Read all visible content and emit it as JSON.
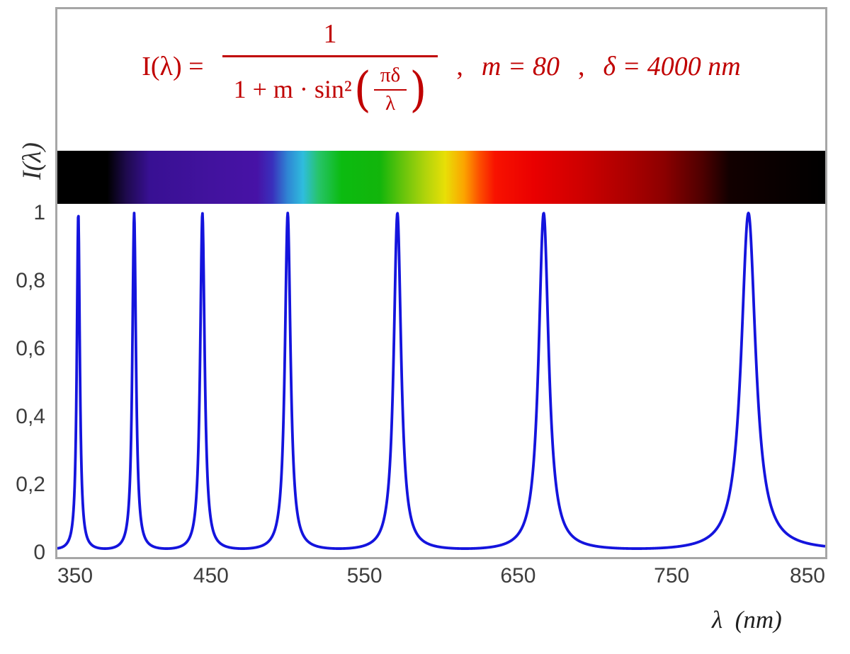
{
  "chart_data": {
    "type": "line",
    "x_title": "λ  (nm)",
    "y_title": "I(λ)",
    "xlim": [
      350,
      850
    ],
    "ylim": [
      0,
      1
    ],
    "grid": false,
    "legend": "none",
    "x_ticks": [
      {
        "label": "350",
        "value": 350
      },
      {
        "label": "450",
        "value": 450
      },
      {
        "label": "550",
        "value": 550
      },
      {
        "label": "650",
        "value": 650
      },
      {
        "label": "750",
        "value": 750
      },
      {
        "label": "850",
        "value": 850
      }
    ],
    "y_ticks": [
      {
        "label": "1",
        "value": 1
      },
      {
        "label": "0,8",
        "value": 0.8
      },
      {
        "label": "0,6",
        "value": 0.6
      },
      {
        "label": "0,4",
        "value": 0.4
      },
      {
        "label": "0,2",
        "value": 0.2
      },
      {
        "label": "0",
        "value": 0
      }
    ],
    "function": "I(λ) = 1 / (1 + m·sin²(πδ/λ))",
    "params": {
      "m": 80,
      "delta_nm": 4000
    },
    "peaks_nm": [
      363.64,
      400.0,
      444.44,
      500.0,
      571.43,
      666.67,
      800.0
    ],
    "peak_value": 1,
    "min_value": 0.0123,
    "sample_step_nm": 0.25,
    "curve_color": "#1414dd",
    "curve_width": 3.8,
    "frame_border_color": "#a6a6a6",
    "tick_text_color": "#3d3d3d",
    "spectrum_bar": {
      "stops": [
        {
          "pos": "0%",
          "color": "#000000"
        },
        {
          "pos": "6.5%",
          "color": "#000000"
        },
        {
          "pos": "9%",
          "color": "#1e0a4e"
        },
        {
          "pos": "12%",
          "color": "#381093"
        },
        {
          "pos": "20%",
          "color": "#42129e"
        },
        {
          "pos": "26%",
          "color": "#4712a6"
        },
        {
          "pos": "28%",
          "color": "#3930bc"
        },
        {
          "pos": "30%",
          "color": "#2f86d4"
        },
        {
          "pos": "32%",
          "color": "#2fbddd"
        },
        {
          "pos": "34%",
          "color": "#27c46a"
        },
        {
          "pos": "37%",
          "color": "#0bbb10"
        },
        {
          "pos": "42%",
          "color": "#12b50b"
        },
        {
          "pos": "45%",
          "color": "#66c40c"
        },
        {
          "pos": "48%",
          "color": "#b2d40b"
        },
        {
          "pos": "50.5%",
          "color": "#e8df07"
        },
        {
          "pos": "53%",
          "color": "#fca300"
        },
        {
          "pos": "55%",
          "color": "#fc4e00"
        },
        {
          "pos": "57%",
          "color": "#f81200"
        },
        {
          "pos": "62%",
          "color": "#ea0000"
        },
        {
          "pos": "68%",
          "color": "#cf0000"
        },
        {
          "pos": "74%",
          "color": "#ad0000"
        },
        {
          "pos": "79%",
          "color": "#8c0000"
        },
        {
          "pos": "84%",
          "color": "#4e0000"
        },
        {
          "pos": "87.5%",
          "color": "#120000"
        },
        {
          "pos": "100%",
          "color": "#000000"
        }
      ]
    }
  },
  "formula": {
    "color": "#c00000",
    "lhs": "I(λ) =",
    "numerator": "1",
    "denom_prefix": "1 + m · sin²",
    "open_paren": "(",
    "inner_numerator": "πδ",
    "inner_denominator": "λ",
    "close_paren": ")",
    "comma": ",",
    "param_m": "m = 80",
    "param_delta": "δ = 4000 nm"
  }
}
